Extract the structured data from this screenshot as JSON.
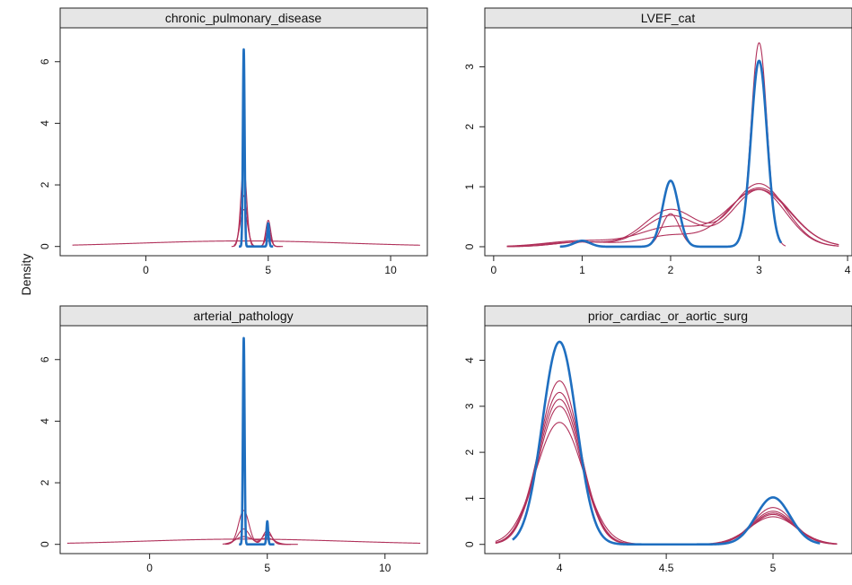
{
  "ylabel": "Density",
  "colors": {
    "observed": "#1f6fc0",
    "imputed": "#b0305a"
  },
  "chart_data": [
    {
      "type": "line",
      "title": "chronic_pulmonary_disease",
      "xlim": [
        -3.5,
        11.5
      ],
      "ylim": [
        -0.3,
        7.1
      ],
      "xticks": [
        0,
        5,
        10
      ],
      "yticks": [
        0,
        2,
        4,
        6
      ],
      "series": [
        {
          "role": "observed",
          "kind": "kde",
          "range": [
            3.8,
            5.2
          ],
          "peaks": [
            {
              "mu": 4.0,
              "sd": 0.035,
              "h": 6.4
            },
            {
              "mu": 5.0,
              "sd": 0.035,
              "h": 0.75
            }
          ],
          "base": 0
        },
        {
          "role": "imputed",
          "kind": "kde",
          "range": [
            -3.0,
            11.2
          ],
          "peaks": [],
          "base": 0,
          "broad": {
            "mu": 4.0,
            "sd": 4.2,
            "h": 0.18
          }
        },
        {
          "role": "imputed",
          "kind": "kde",
          "range": [
            3.5,
            5.6
          ],
          "peaks": [
            {
              "mu": 4.0,
              "sd": 0.12,
              "h": 2.6
            },
            {
              "mu": 5.0,
              "sd": 0.1,
              "h": 0.85
            }
          ],
          "base": 0
        },
        {
          "role": "imputed",
          "kind": "kde",
          "range": [
            3.6,
            5.5
          ],
          "peaks": [
            {
              "mu": 4.0,
              "sd": 0.14,
              "h": 1.65
            },
            {
              "mu": 5.0,
              "sd": 0.1,
              "h": 0.6
            }
          ],
          "base": 0
        },
        {
          "role": "imputed",
          "kind": "kde",
          "range": [
            3.6,
            5.4
          ],
          "peaks": [
            {
              "mu": 4.0,
              "sd": 0.15,
              "h": 1.2
            },
            {
              "mu": 5.0,
              "sd": 0.12,
              "h": 0.35
            }
          ],
          "base": 0
        }
      ]
    },
    {
      "type": "line",
      "title": "LVEF_cat",
      "xlim": [
        -0.1,
        4.05
      ],
      "ylim": [
        -0.15,
        3.65
      ],
      "xticks": [
        0,
        1,
        2,
        3,
        4
      ],
      "yticks": [
        0,
        1,
        2,
        3
      ],
      "series": [
        {
          "role": "observed",
          "kind": "kde",
          "range": [
            0.75,
            3.25
          ],
          "peaks": [
            {
              "mu": 1.0,
              "sd": 0.09,
              "h": 0.1
            },
            {
              "mu": 2.0,
              "sd": 0.09,
              "h": 1.1
            },
            {
              "mu": 3.0,
              "sd": 0.09,
              "h": 3.1
            }
          ],
          "base": 0
        },
        {
          "role": "imputed",
          "kind": "kde",
          "range": [
            0.75,
            3.3
          ],
          "peaks": [
            {
              "mu": 1.0,
              "sd": 0.09,
              "h": 0.08
            },
            {
              "mu": 2.0,
              "sd": 0.1,
              "h": 0.55
            },
            {
              "mu": 3.0,
              "sd": 0.09,
              "h": 3.4
            }
          ],
          "base": 0
        },
        {
          "role": "imputed",
          "kind": "kde",
          "range": [
            0.15,
            3.9
          ],
          "peaks": [
            {
              "mu": 1.0,
              "sd": 0.3,
              "h": 0.08
            },
            {
              "mu": 2.0,
              "sd": 0.3,
              "h": 0.62
            },
            {
              "mu": 3.0,
              "sd": 0.3,
              "h": 1.05
            }
          ],
          "base": 0
        },
        {
          "role": "imputed",
          "kind": "kde",
          "range": [
            0.15,
            3.9
          ],
          "peaks": [
            {
              "mu": 1.0,
              "sd": 0.3,
              "h": 0.08
            },
            {
              "mu": 2.0,
              "sd": 0.3,
              "h": 0.52
            },
            {
              "mu": 3.0,
              "sd": 0.3,
              "h": 0.95
            }
          ],
          "base": 0
        },
        {
          "role": "imputed",
          "kind": "kde",
          "range": [
            0.15,
            3.9
          ],
          "peaks": [
            {
              "mu": 1.0,
              "sd": 0.4,
              "h": 0.1
            },
            {
              "mu": 2.0,
              "sd": 0.35,
              "h": 0.32
            },
            {
              "mu": 3.0,
              "sd": 0.35,
              "h": 0.95
            }
          ],
          "base": 0
        },
        {
          "role": "imputed",
          "kind": "kde",
          "range": [
            0.15,
            3.9
          ],
          "peaks": [
            {
              "mu": 1.0,
              "sd": 0.4,
              "h": 0.08
            },
            {
              "mu": 2.0,
              "sd": 0.3,
              "h": 0.18
            },
            {
              "mu": 3.0,
              "sd": 0.35,
              "h": 0.98
            }
          ],
          "base": 0
        }
      ]
    },
    {
      "type": "line",
      "title": "arterial_pathology",
      "xlim": [
        -3.8,
        11.8
      ],
      "ylim": [
        -0.3,
        7.1
      ],
      "xticks": [
        0,
        5,
        10
      ],
      "yticks": [
        0,
        2,
        4,
        6
      ],
      "series": [
        {
          "role": "observed",
          "kind": "kde",
          "range": [
            3.8,
            5.3
          ],
          "peaks": [
            {
              "mu": 4.0,
              "sd": 0.035,
              "h": 6.7
            },
            {
              "mu": 5.0,
              "sd": 0.035,
              "h": 0.75
            }
          ],
          "base": 0
        },
        {
          "role": "imputed",
          "kind": "kde",
          "range": [
            -3.5,
            11.5
          ],
          "peaks": [],
          "base": 0,
          "broad": {
            "mu": 4.0,
            "sd": 4.3,
            "h": 0.17
          }
        },
        {
          "role": "imputed",
          "kind": "kde",
          "range": [
            3.2,
            5.9
          ],
          "peaks": [
            {
              "mu": 4.0,
              "sd": 0.22,
              "h": 1.1
            },
            {
              "mu": 5.0,
              "sd": 0.18,
              "h": 0.45
            }
          ],
          "base": 0
        },
        {
          "role": "imputed",
          "kind": "kde",
          "range": [
            3.3,
            6.0
          ],
          "peaks": [
            {
              "mu": 4.0,
              "sd": 0.25,
              "h": 0.5
            },
            {
              "mu": 5.0,
              "sd": 0.22,
              "h": 0.35
            }
          ],
          "base": 0
        },
        {
          "role": "imputed",
          "kind": "kde",
          "range": [
            3.1,
            6.3
          ],
          "peaks": [
            {
              "mu": 4.0,
              "sd": 0.35,
              "h": 0.25
            },
            {
              "mu": 5.0,
              "sd": 0.3,
              "h": 0.2
            }
          ],
          "base": 0
        }
      ]
    },
    {
      "type": "line",
      "title": "prior_cardiac_or_aortic_surg",
      "xlim": [
        3.65,
        5.37
      ],
      "ylim": [
        -0.2,
        4.75
      ],
      "xticks": [
        4.0,
        4.5,
        5.0
      ],
      "yticks": [
        0,
        1,
        2,
        3,
        4
      ],
      "series": [
        {
          "role": "observed",
          "kind": "kde",
          "range": [
            3.78,
            5.22
          ],
          "peaks": [
            {
              "mu": 4.0,
              "sd": 0.08,
              "h": 4.4
            },
            {
              "mu": 5.0,
              "sd": 0.08,
              "h": 1.02
            }
          ],
          "base": 0
        },
        {
          "role": "imputed",
          "kind": "kde",
          "range": [
            3.7,
            5.3
          ],
          "peaks": [
            {
              "mu": 4.0,
              "sd": 0.095,
              "h": 3.55
            },
            {
              "mu": 5.0,
              "sd": 0.095,
              "h": 0.8
            }
          ],
          "base": 0
        },
        {
          "role": "imputed",
          "kind": "kde",
          "range": [
            3.7,
            5.3
          ],
          "peaks": [
            {
              "mu": 4.0,
              "sd": 0.1,
              "h": 3.3
            },
            {
              "mu": 5.0,
              "sd": 0.1,
              "h": 0.72
            }
          ],
          "base": 0
        },
        {
          "role": "imputed",
          "kind": "kde",
          "range": [
            3.7,
            5.3
          ],
          "peaks": [
            {
              "mu": 4.0,
              "sd": 0.1,
              "h": 3.15
            },
            {
              "mu": 5.0,
              "sd": 0.1,
              "h": 0.68
            }
          ],
          "base": 0
        },
        {
          "role": "imputed",
          "kind": "kde",
          "range": [
            3.7,
            5.3
          ],
          "peaks": [
            {
              "mu": 4.0,
              "sd": 0.1,
              "h": 3.0
            },
            {
              "mu": 5.0,
              "sd": 0.1,
              "h": 0.65
            }
          ],
          "base": 0
        },
        {
          "role": "imputed",
          "kind": "kde",
          "range": [
            3.7,
            5.3
          ],
          "peaks": [
            {
              "mu": 4.0,
              "sd": 0.11,
              "h": 2.65
            },
            {
              "mu": 5.0,
              "sd": 0.11,
              "h": 0.6
            }
          ],
          "base": 0
        }
      ]
    }
  ]
}
